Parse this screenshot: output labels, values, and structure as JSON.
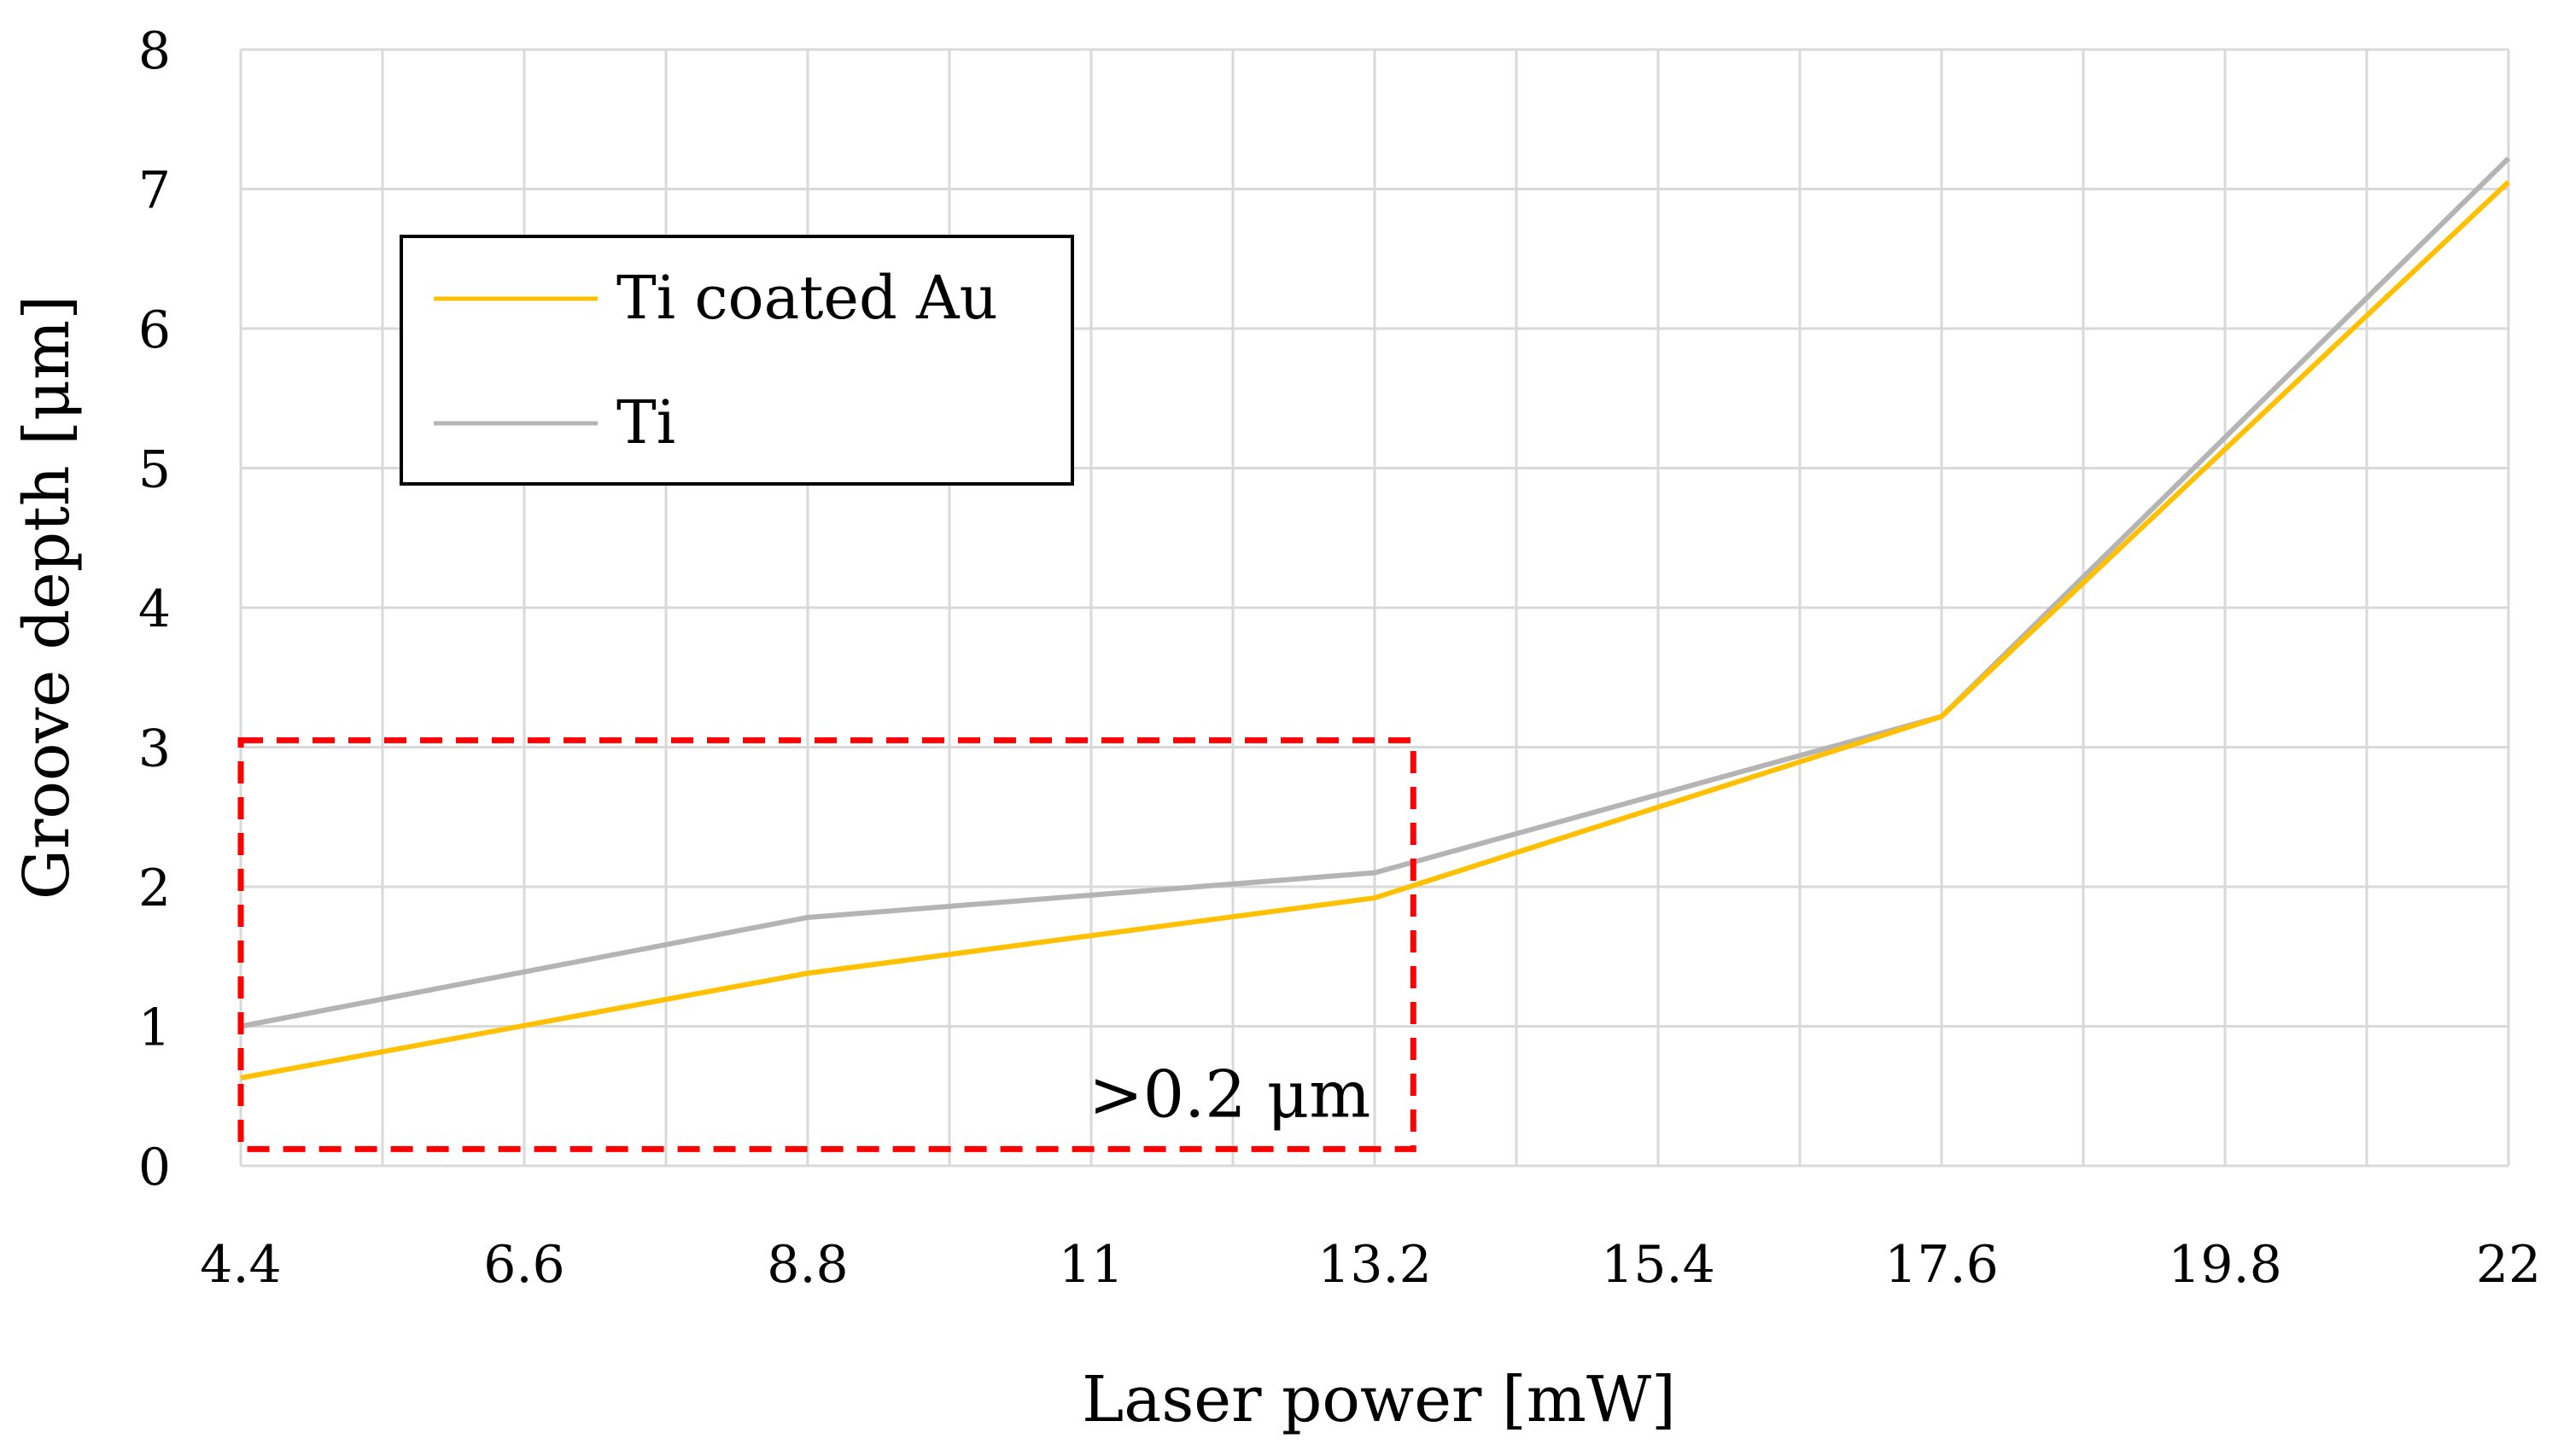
{
  "chart_data": {
    "type": "line",
    "title": "",
    "xlabel": "Laser power [mW]",
    "ylabel": "Groove depth [μm]",
    "x": [
      4.4,
      8.8,
      13.2,
      17.6,
      22
    ],
    "xticks": [
      "4.4",
      "6.6",
      "8.8",
      "11",
      "13.2",
      "15.4",
      "17.6",
      "19.8",
      "22"
    ],
    "yticks": [
      "0",
      "1",
      "2",
      "3",
      "4",
      "5",
      "6",
      "7",
      "8"
    ],
    "xlim": [
      4.4,
      22
    ],
    "ylim": [
      0,
      8
    ],
    "grid": true,
    "legend_position": "top-left",
    "series": [
      {
        "name": "Ti coated Au",
        "color": "#ffc000",
        "values": [
          0.63,
          1.38,
          1.92,
          3.22,
          7.05
        ]
      },
      {
        "name": "Ti",
        "color": "#b4b4b4",
        "values": [
          1.0,
          1.78,
          2.1,
          3.22,
          7.22
        ]
      }
    ],
    "annotation": {
      "text": ">0.2 μm",
      "style": "red dashed box",
      "color": "#ff0000",
      "x_range": [
        4.4,
        13.5
      ],
      "y_range": [
        0.12,
        3.05
      ]
    }
  }
}
